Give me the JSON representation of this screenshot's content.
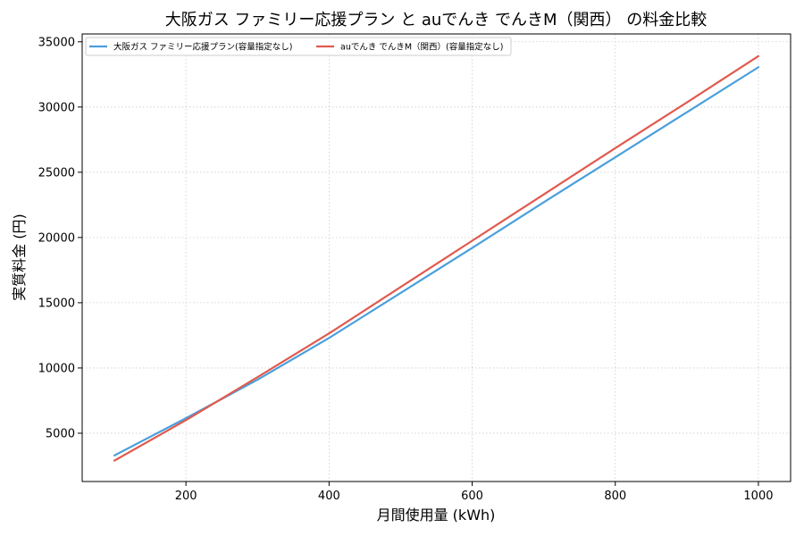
{
  "chart_data": {
    "type": "line",
    "title": "大阪ガス ファミリー応援プラン と auでんき でんきM（関西） の料金比較",
    "xlabel": "月間使用量 (kWh)",
    "ylabel": "実質料金 (円)",
    "xlim": [
      55,
      1045
    ],
    "ylim": [
      1300,
      35600
    ],
    "xticks": [
      200,
      400,
      600,
      800,
      1000
    ],
    "yticks": [
      5000,
      10000,
      15000,
      20000,
      25000,
      30000,
      35000
    ],
    "grid": true,
    "legend_position": "top-left",
    "series": [
      {
        "name": "大阪ガス ファミリー応援プラン(容量指定なし)",
        "color": "#4a9fdc",
        "x": [
          100,
          200,
          300,
          400,
          500,
          600,
          700,
          800,
          900,
          1000
        ],
        "y": [
          3300,
          6150,
          9100,
          12300,
          15750,
          19200,
          22700,
          26150,
          29600,
          33050
        ]
      },
      {
        "name": "auでんき でんきM（関西）(容量指定なし)",
        "color": "#e05a4e",
        "x": [
          100,
          200,
          300,
          400,
          500,
          600,
          700,
          800,
          900,
          1000
        ],
        "y": [
          2900,
          6000,
          9300,
          12650,
          16200,
          19750,
          23300,
          26850,
          30350,
          33900
        ]
      }
    ]
  }
}
